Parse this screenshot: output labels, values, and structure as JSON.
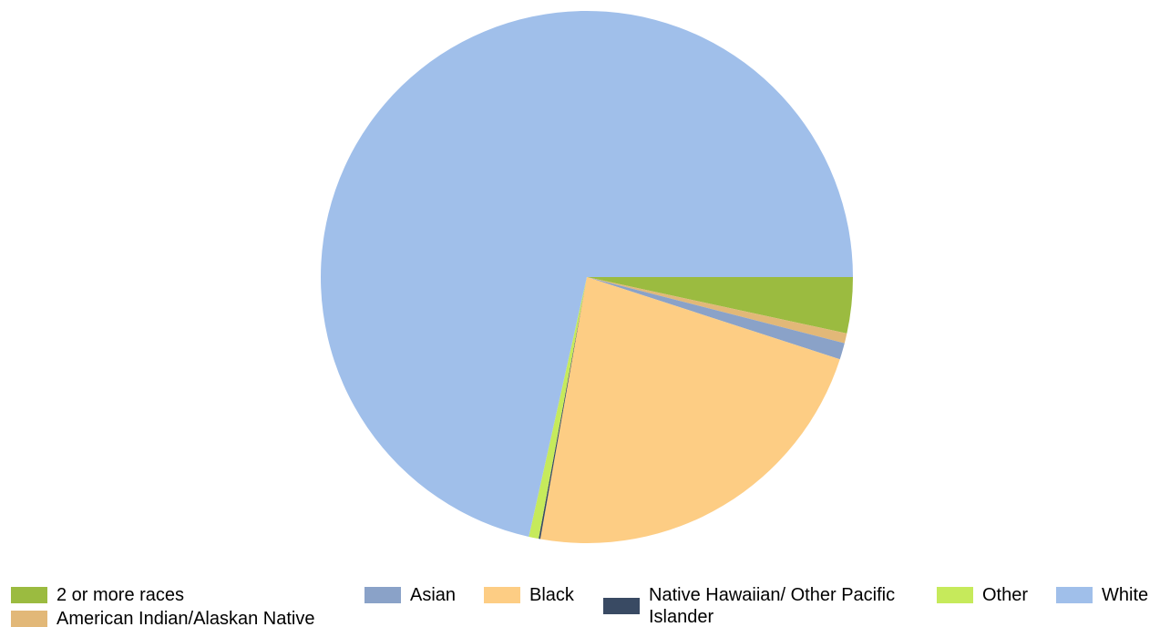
{
  "chart_data": {
    "type": "pie",
    "title": "",
    "legend_position": "bottom",
    "start": "3 o'clock, clockwise",
    "slices": [
      {
        "label": "2 or more races",
        "value": 3.4,
        "color": "#9bbb40"
      },
      {
        "label": "American Indian/Alaskan Native",
        "value": 0.6,
        "color": "#e2b878"
      },
      {
        "label": "Asian",
        "value": 1.0,
        "color": "#8aa2c8"
      },
      {
        "label": "Black",
        "value": 22.8,
        "color": "#fdcd84"
      },
      {
        "label": "Native Hawaiian/ Other Pacific Islander",
        "value": 0.1,
        "color": "#394a63"
      },
      {
        "label": "Other",
        "value": 0.6,
        "color": "#c6ea5b"
      },
      {
        "label": "White",
        "value": 71.5,
        "color": "#a0bfea"
      }
    ]
  }
}
